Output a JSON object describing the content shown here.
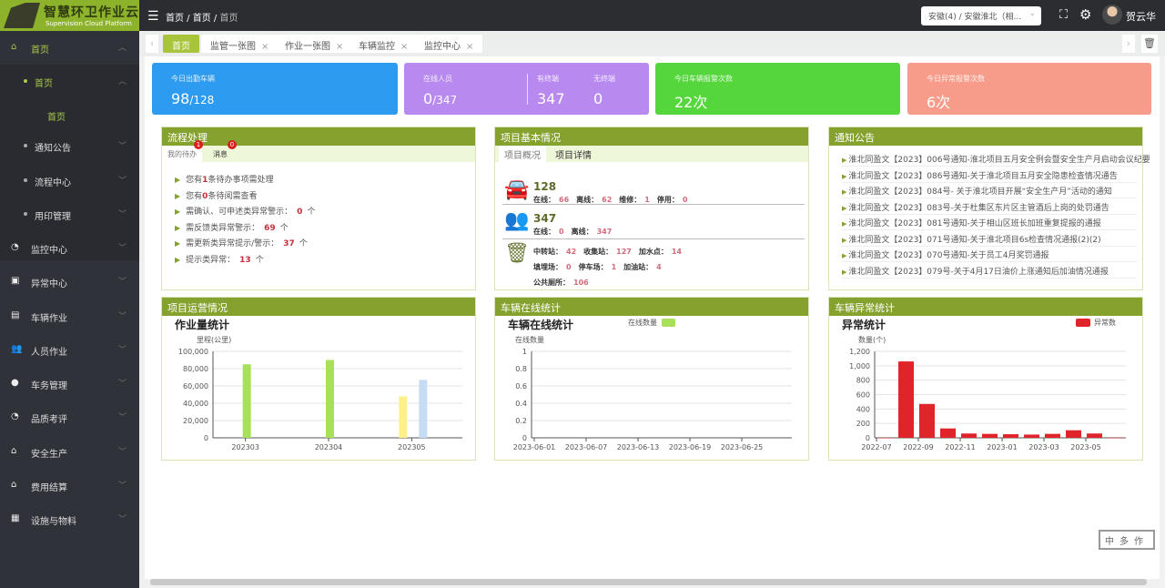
{
  "app": {
    "title": "智慧环卫作业云",
    "subtitle": "Supervision Cloud Platform"
  },
  "header": {
    "breadcrumb": [
      "首页",
      "首页",
      "首页"
    ],
    "org_select": "安徽(4) / 安徽淮北（相...",
    "user": "贺云华",
    "icons": [
      "menu-fold-icon",
      "fullscreen-icon",
      "gear-icon"
    ]
  },
  "sidebar": {
    "items": [
      {
        "label": "首页",
        "icon": "home-icon",
        "level": 0,
        "active": true,
        "expanded": true
      },
      {
        "label": "首页",
        "level": 1,
        "active": true,
        "expanded": true
      },
      {
        "label": "首页",
        "level": 2,
        "active": true
      },
      {
        "label": "通知公告",
        "level": 1
      },
      {
        "label": "流程中心",
        "level": 1
      },
      {
        "label": "用印管理",
        "level": 1
      },
      {
        "label": "监控中心",
        "icon": "dashboard-icon",
        "level": 0
      },
      {
        "label": "异常中心",
        "icon": "monitor-icon",
        "level": 0
      },
      {
        "label": "车辆作业",
        "icon": "bus-icon",
        "level": 0
      },
      {
        "label": "人员作业",
        "icon": "users-icon",
        "level": 0
      },
      {
        "label": "车务管理",
        "icon": "badge-icon",
        "level": 0
      },
      {
        "label": "品质考评",
        "icon": "dashboard-icon",
        "level": 0
      },
      {
        "label": "安全生产",
        "icon": "home-icon",
        "level": 0
      },
      {
        "label": "费用结算",
        "icon": "home-icon",
        "level": 0
      },
      {
        "label": "设施与物料",
        "icon": "box-icon",
        "level": 0
      }
    ]
  },
  "tabs": [
    {
      "label": "首页",
      "active": true
    },
    {
      "label": "监管一张图"
    },
    {
      "label": "作业一张图"
    },
    {
      "label": "车辆监控"
    },
    {
      "label": "监控中心"
    }
  ],
  "stats": {
    "vehicles": {
      "label": "今日出勤车辆",
      "value": "98",
      "total": "/128",
      "color": "#2d9bf0"
    },
    "staff": {
      "label": "在线人员",
      "value": "0",
      "total": "/347",
      "with_terminal_label": "有终端",
      "with_terminal": "347",
      "without_terminal_label": "无终端",
      "without_terminal": "0",
      "color": "#b88af0"
    },
    "vehicle_alarms": {
      "label": "今日车辆报警次数",
      "value": "22次",
      "color": "#55d63c"
    },
    "abnormal_alarms": {
      "label": "今日异常报警次数",
      "value": "6次",
      "color": "#f79c8a"
    }
  },
  "workflow": {
    "title": "流程处理",
    "tabs": [
      {
        "label": "我的待办",
        "badge": "1"
      },
      {
        "label": "消息",
        "badge": "0"
      }
    ],
    "items": [
      {
        "pre": "您有",
        "num": "1",
        "post": "条待办事项需处理"
      },
      {
        "pre": "您有",
        "num": "0",
        "post": "条待阅需查看"
      },
      {
        "pre": "需确认、可申述类异常警示：",
        "num": "0",
        "post": "个"
      },
      {
        "pre": "需反馈类异常警示：",
        "num": "69",
        "post": "个"
      },
      {
        "pre": "需更新类异常提示/警示：",
        "num": "37",
        "post": "个"
      },
      {
        "pre": "提示类异常：",
        "num": "13",
        "post": "个"
      }
    ]
  },
  "project": {
    "title": "项目基本情况",
    "tabs": [
      "项目概况",
      "项目详情"
    ],
    "vehicles": {
      "total": "128",
      "stats": [
        [
          "在线：",
          "66"
        ],
        [
          "离线：",
          "62"
        ],
        [
          "维修：",
          "1"
        ],
        [
          "停用：",
          "0"
        ]
      ]
    },
    "staff": {
      "total": "347",
      "stats": [
        [
          "在线：",
          "0"
        ],
        [
          "离线：",
          "347"
        ]
      ]
    },
    "facilities": {
      "rows": [
        [
          [
            "中转站：",
            "42"
          ],
          [
            "收集站：",
            "127"
          ],
          [
            "加水点：",
            "14"
          ]
        ],
        [
          [
            "填埋场：",
            "0"
          ],
          [
            "停车场：",
            "1"
          ],
          [
            "加油站：",
            "4"
          ]
        ],
        [
          [
            "公共厕所：",
            "106"
          ]
        ]
      ]
    }
  },
  "notices": {
    "title": "通知公告",
    "items": [
      "淮北同盈文【2023】006号通知-淮北项目五月安全例会暨安全生产月启动会议纪要",
      "淮北同盈文【2023】086号通知-关于淮北项目五月安全隐患检查情况通告",
      "淮北同盈文【2023】084号- 关于淮北项目开展“安全生产月”活动的通知",
      "淮北同盈文【2023】083号-关于杜集区东片区主管酒后上岗的处罚通告",
      "淮北同盈文【2023】081号通知-关于相山区班长加班重复提报的通报",
      "淮北同盈文【2023】071号通知-关于淮北项目6s检查情况通报(2)(2)",
      "淮北同盈文【2023】070号通知-关于员工4月奖罚通报",
      "淮北同盈文【2023】079号-关于4月17日油价上涨通知后加油情况通报"
    ]
  },
  "panels": {
    "operations": "项目运营情况",
    "online": "车辆在线统计",
    "abnormal": "车辆异常统计"
  },
  "chart_data": [
    {
      "type": "bar",
      "title": "作业量统计",
      "ylabel": "里程(公里)",
      "categories": [
        "202303",
        "202304",
        "202305"
      ],
      "ylim": [
        0,
        100000
      ],
      "yticks": [
        "0",
        "20,000",
        "40,000",
        "60,000",
        "80,000",
        "100,000"
      ],
      "grid": true,
      "series": [
        {
          "color": "#fff08a",
          "values": [
            0,
            0,
            48000
          ]
        },
        {
          "color": "#a9e05a",
          "values": [
            85000,
            90000,
            0
          ]
        },
        {
          "color": "#c6dcf5",
          "values": [
            0,
            0,
            67000
          ]
        }
      ]
    },
    {
      "type": "line",
      "title": "车辆在线统计",
      "ylabel": "在线数量",
      "legend": "在线数量",
      "legend_color": "#a9e05a",
      "legend_position": "top",
      "xticks": [
        "2023-06-01",
        "2023-06-07",
        "2023-06-13",
        "2023-06-19",
        "2023-06-25"
      ],
      "ylim": [
        0,
        1
      ],
      "yticks": [
        "0",
        "0.2",
        "0.4",
        "0.6",
        "0.8",
        "1"
      ],
      "grid": true,
      "series": [
        {
          "name": "在线数量",
          "values": []
        }
      ]
    },
    {
      "type": "bar",
      "title": "异常统计",
      "ylabel": "数量(个)",
      "legend": "异常数",
      "legend_position": "top-right",
      "color": "#e0252a",
      "ylim": [
        0,
        1200
      ],
      "yticks": [
        "0",
        "200",
        "400",
        "600",
        "800",
        "1,000",
        "1,200"
      ],
      "grid": true,
      "categories": [
        "2022-07",
        "2022-08",
        "2022-09",
        "2022-10",
        "2022-11",
        "2022-12",
        "2023-01",
        "2023-02",
        "2023-03",
        "2023-04",
        "2023-05",
        "2023-06"
      ],
      "xticks": [
        "2022-07",
        "2022-09",
        "2022-11",
        "2023-01",
        "2023-03",
        "2023-05"
      ],
      "series": [
        {
          "name": "异常数",
          "values": [
            0,
            1060,
            470,
            130,
            60,
            55,
            50,
            45,
            55,
            105,
            60,
            2
          ]
        }
      ]
    }
  ],
  "stamp": "中多作"
}
